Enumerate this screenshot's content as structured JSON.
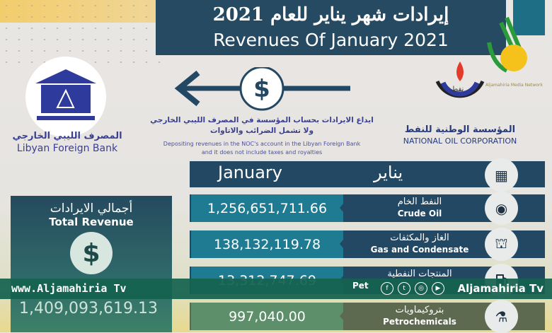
{
  "header": {
    "title_ar": "إيرادات شهر يناير للعام  2021",
    "title_en": "Revenues Of January   2021"
  },
  "jamahiria_logo": {
    "caption": "Aljamahiria Media Network"
  },
  "bank": {
    "name_ar": "المصرف الليبي الخارجي",
    "name_en": "Libyan Foreign Bank"
  },
  "noc": {
    "logo_text": "نفط",
    "name_ar": "المؤسسة الوطنية للنفط",
    "name_en": "NATIONAL OIL CORPORATION"
  },
  "deposit": {
    "icon": "dollar-icon",
    "ar_line1": "ايداع الايرادات بحساب المؤسسة في المصرف الليبي الخارجي",
    "ar_line2": "ولا تشمل الضرائب والاتاوات",
    "en_line1": "Depositing revenues in the NOC's account in the Libyan Foreign Bank",
    "en_line2": "and it does not include taxes and royalties"
  },
  "month": {
    "en": "January",
    "ar": "يناير",
    "icon": "calendar-icon"
  },
  "rows": [
    {
      "ar": "النفط الخام",
      "en": "Crude Oil",
      "value": "1,256,651,711.66",
      "icon": "oil-barrel-icon"
    },
    {
      "ar": "الغاز والمكثفات",
      "en": "Gas and Condensate",
      "value": "138,132,119.78",
      "icon": "oil-rig-icon"
    },
    {
      "ar": "المنتجات النفطية",
      "en": "Pet",
      "value": "13,312,747.69",
      "icon": "fuel-icon"
    },
    {
      "ar": "بتروكيماويات",
      "en": "Petrochemicals",
      "value": "997,040.00",
      "icon": "lab-flask-icon"
    }
  ],
  "total": {
    "ar": "أجمالي الايرادات",
    "en": "Total Revenue",
    "value": "1,409,093,619.13",
    "icon": "dollar-icon"
  },
  "watermark": {
    "left": "www.Aljamahiria Tv",
    "right": "Aljamahiria Tv",
    "socials": [
      "f",
      "t",
      "ig",
      "yt"
    ]
  },
  "colors": {
    "navy": "#254a62",
    "teal": "#1f7b91",
    "banner": "#166250",
    "accent": "#3a3f8f"
  }
}
